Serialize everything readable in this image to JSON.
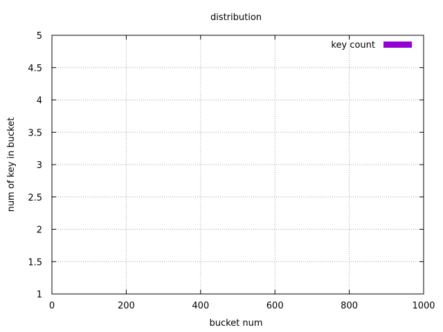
{
  "chart_data": {
    "type": "bar",
    "title": "distribution",
    "xlabel": "bucket num",
    "ylabel": "num of key in bucket",
    "xlim": [
      0,
      1000
    ],
    "ylim": [
      1,
      5
    ],
    "x_ticks": [
      "0",
      "200",
      "400",
      "600",
      "800",
      "1000"
    ],
    "y_ticks": [
      "1",
      "1.5",
      "2",
      "2.5",
      "3",
      "3.5",
      "4",
      "4.5",
      "5"
    ],
    "grid": true,
    "legend_position": "top-right",
    "series": [
      {
        "name": "key count",
        "color": "#9400d3",
        "values": []
      }
    ]
  }
}
